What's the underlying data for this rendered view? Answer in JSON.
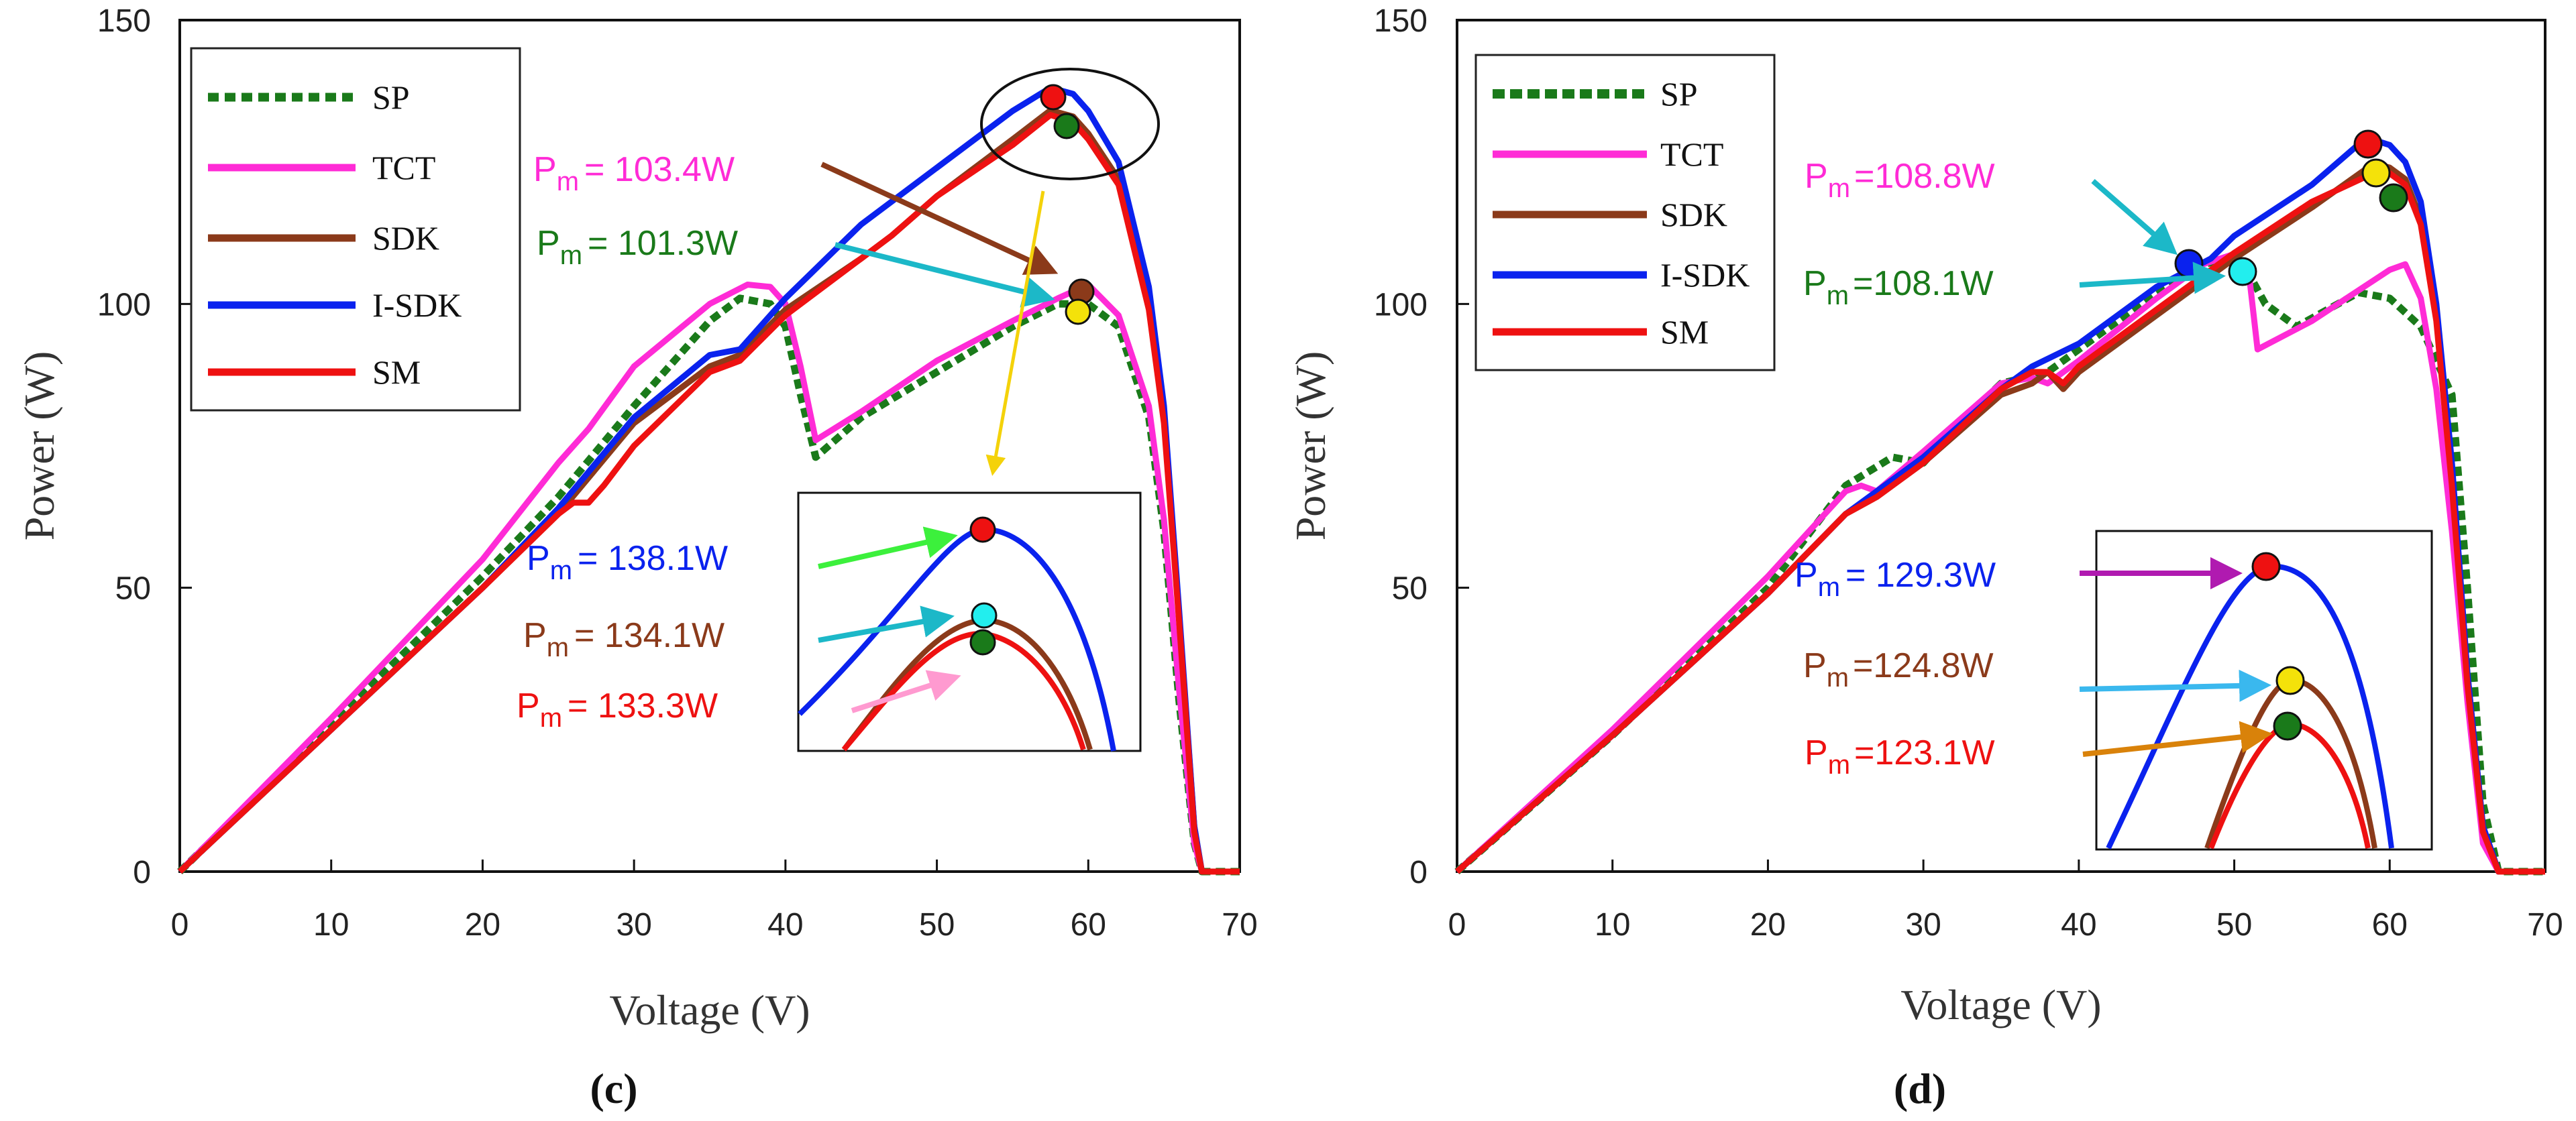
{
  "chart_data": [
    {
      "type": "line",
      "title": "",
      "caption": "(c)",
      "xlabel": "Voltage (V)",
      "ylabel": "Power (W)",
      "xlim": [
        0,
        70
      ],
      "ylim": [
        0,
        150
      ],
      "xticks": [
        "0",
        "10",
        "20",
        "30",
        "40",
        "50",
        "60",
        "70"
      ],
      "yticks": [
        "0",
        "50",
        "100",
        "150"
      ],
      "series": [
        {
          "name": "SP",
          "color": "#1a7a1a",
          "dashed": true,
          "x": [
            0,
            10,
            20,
            25,
            30,
            35,
            37,
            39,
            40,
            41,
            42,
            45,
            50,
            55,
            58,
            60,
            62,
            64,
            65,
            66,
            67,
            67.5,
            70
          ],
          "y": [
            0,
            26,
            52,
            66,
            82,
            97,
            101,
            100,
            96,
            84,
            73,
            80,
            88,
            96,
            100,
            100,
            96,
            80,
            60,
            30,
            5,
            0,
            0
          ]
        },
        {
          "name": "TCT",
          "color": "#ff2bd6",
          "x": [
            0,
            10,
            20,
            25,
            27,
            30,
            35,
            37.5,
            39,
            40,
            41,
            42,
            45,
            50,
            55,
            58,
            60,
            62,
            64,
            65,
            66,
            67,
            67.5,
            70
          ],
          "y": [
            0,
            27,
            55,
            72,
            78,
            89,
            100,
            103.4,
            103,
            100,
            89,
            76,
            81,
            90,
            97,
            101,
            103.4,
            98,
            82,
            62,
            32,
            5,
            0,
            0
          ]
        },
        {
          "name": "SDK",
          "color": "#8b3a1a",
          "x": [
            0,
            10,
            20,
            25,
            30,
            35,
            37,
            40,
            45,
            47,
            50,
            55,
            57.5,
            59,
            60,
            62,
            64,
            65,
            66,
            67,
            67.5,
            70
          ],
          "y": [
            0,
            25,
            50,
            63,
            79,
            89,
            91,
            99,
            108,
            112,
            119,
            129,
            134.1,
            133,
            130,
            122,
            100,
            80,
            45,
            8,
            0,
            0
          ]
        },
        {
          "name": "I-SDK",
          "color": "#0a22ee",
          "x": [
            0,
            10,
            20,
            25,
            30,
            35,
            37,
            40,
            45,
            50,
            55,
            57.5,
            59,
            60,
            62,
            64,
            65,
            66,
            67,
            67.5,
            70
          ],
          "y": [
            0,
            25,
            50,
            64,
            80,
            91,
            92,
            101,
            114,
            124,
            134,
            138.1,
            137,
            134,
            125,
            103,
            82,
            46,
            8,
            0,
            0
          ]
        },
        {
          "name": "SM",
          "color": "#ee1111",
          "x": [
            0,
            10,
            20,
            25,
            26,
            27,
            28,
            30,
            35,
            37,
            40,
            45,
            47,
            50,
            55,
            57.5,
            59,
            60,
            62,
            64,
            65,
            66,
            67,
            67.5,
            70
          ],
          "y": [
            0,
            25,
            50,
            63,
            65,
            65,
            68,
            75,
            88,
            90,
            98,
            108,
            112,
            119,
            128,
            133.3,
            132,
            129,
            121,
            99,
            79,
            44,
            7,
            0,
            0
          ]
        }
      ],
      "legend": [
        "SP",
        "TCT",
        "SDK",
        "I-SDK",
        "SM"
      ],
      "annotations": [
        {
          "text": "P",
          "sub": "m",
          "value": "= 103.4W",
          "color": "#ff2bd6"
        },
        {
          "text": "P",
          "sub": "m",
          "value": "= 101.3W",
          "color": "#1a7a1a"
        },
        {
          "text": "P",
          "sub": "m",
          "value": "= 138.1W",
          "color": "#0a22ee"
        },
        {
          "text": "P",
          "sub": "m",
          "value": "= 134.1W",
          "color": "#8b3a1a"
        },
        {
          "text": "P",
          "sub": "m",
          "value": "= 133.3W",
          "color": "#ee1111"
        }
      ]
    },
    {
      "type": "line",
      "title": "",
      "caption": "(d)",
      "xlabel": "Voltage (V)",
      "ylabel": "Power (W)",
      "xlim": [
        0,
        70
      ],
      "ylim": [
        0,
        150
      ],
      "xticks": [
        "0",
        "10",
        "20",
        "30",
        "40",
        "50",
        "60",
        "70"
      ],
      "yticks": [
        "0",
        "50",
        "100",
        "150"
      ],
      "series": [
        {
          "name": "SP",
          "color": "#1a7a1a",
          "dashed": true,
          "x": [
            0,
            10,
            20,
            25,
            28,
            30,
            32,
            35,
            38,
            40,
            45,
            48,
            50,
            51,
            52,
            54,
            56,
            58,
            60,
            62,
            64,
            65,
            66,
            67,
            70
          ],
          "y": [
            0,
            24,
            50,
            68,
            73,
            72,
            78,
            86,
            88,
            92,
            102,
            107,
            108.1,
            105,
            100,
            96,
            99,
            102,
            101,
            96,
            84,
            50,
            12,
            0,
            0
          ]
        },
        {
          "name": "TCT",
          "color": "#ff2bd6",
          "x": [
            0,
            10,
            20,
            25,
            26,
            27,
            30,
            35,
            37,
            38,
            40,
            45,
            48,
            50,
            51,
            51.5,
            55,
            60,
            61,
            62,
            63,
            64,
            65,
            66,
            67,
            70
          ],
          "y": [
            0,
            25,
            52,
            67,
            68,
            67,
            74,
            86,
            87,
            86,
            90,
            101,
            107,
            108.8,
            104,
            92,
            97,
            106,
            107,
            101,
            85,
            60,
            30,
            5,
            0,
            0
          ]
        },
        {
          "name": "SDK",
          "color": "#8b3a1a",
          "x": [
            0,
            10,
            20,
            25,
            27,
            30,
            35,
            37,
            38,
            39,
            40,
            45,
            50,
            55,
            59,
            60,
            61,
            62,
            63,
            64,
            65,
            66,
            67,
            70
          ],
          "y": [
            0,
            24,
            49,
            63,
            66,
            72,
            84,
            86,
            88,
            85,
            88,
            98,
            108,
            117,
            124.8,
            124,
            122,
            115,
            98,
            70,
            35,
            8,
            0,
            0
          ]
        },
        {
          "name": "I-SDK",
          "color": "#0a22ee",
          "x": [
            0,
            10,
            20,
            25,
            27,
            30,
            35,
            37,
            40,
            45,
            48.5,
            50,
            55,
            58.5,
            60,
            61,
            62,
            63,
            64,
            65,
            66,
            67,
            70
          ],
          "y": [
            0,
            24,
            49,
            63,
            67,
            73,
            85,
            89,
            93,
            103,
            108,
            112,
            121,
            129.3,
            128,
            125,
            118,
            100,
            72,
            35,
            8,
            0,
            0
          ]
        },
        {
          "name": "SM",
          "color": "#ee1111",
          "x": [
            0,
            10,
            20,
            25,
            27,
            30,
            35,
            37,
            38,
            39,
            40,
            45,
            50,
            55,
            59,
            60,
            61,
            62,
            63,
            64,
            65,
            66,
            67,
            70
          ],
          "y": [
            0,
            24,
            49,
            63,
            66,
            72,
            85,
            88,
            88,
            86,
            89,
            99,
            109,
            118,
            123.1,
            123,
            121,
            114,
            97,
            68,
            33,
            7,
            0,
            0
          ]
        }
      ],
      "legend": [
        "SP",
        "TCT",
        "SDK",
        "I-SDK",
        "SM"
      ],
      "annotations": [
        {
          "text": "P",
          "sub": "m",
          "value": "=108.8W",
          "color": "#ff2bd6"
        },
        {
          "text": "P",
          "sub": "m",
          "value": "=108.1W",
          "color": "#1a7a1a"
        },
        {
          "text": "P",
          "sub": "m",
          "value": "= 129.3W",
          "color": "#0a22ee"
        },
        {
          "text": "P",
          "sub": "m",
          "value": "=124.8W",
          "color": "#8b3a1a"
        },
        {
          "text": "P",
          "sub": "m",
          "value": "=123.1W",
          "color": "#ee1111"
        }
      ]
    }
  ]
}
